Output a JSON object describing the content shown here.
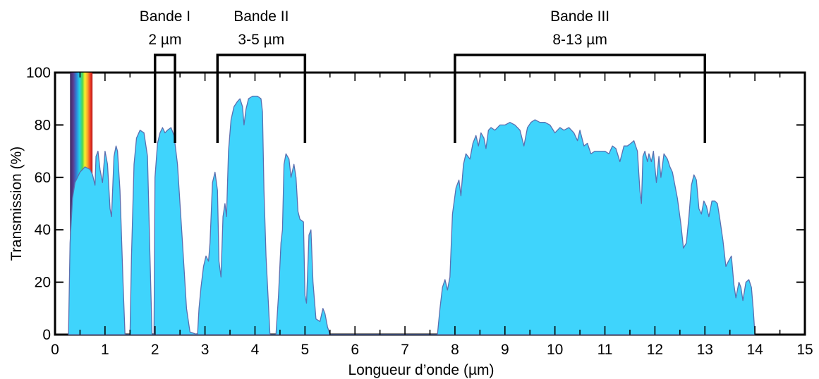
{
  "chart_data": {
    "type": "area",
    "title": "",
    "xlabel": "Longueur d’onde (µm)",
    "ylabel": "Transmission (%)",
    "xlim": [
      0,
      15
    ],
    "ylim": [
      0,
      100
    ],
    "x_ticks": [
      0,
      1,
      2,
      3,
      4,
      5,
      6,
      7,
      8,
      9,
      10,
      11,
      12,
      13,
      14,
      15
    ],
    "y_ticks": [
      0,
      20,
      40,
      60,
      80,
      100
    ],
    "grid": false,
    "fill_color": "#3fd4fc",
    "line_color": "#5a6fb0",
    "visible_spectrum": {
      "range_um": [
        0.3,
        0.75
      ]
    },
    "bands": [
      {
        "name": "Bande I",
        "range_label": "2 µm",
        "x_start": 2.0,
        "x_end": 2.4
      },
      {
        "name": "Bande II",
        "range_label": "3-5 µm",
        "x_start": 3.25,
        "x_end": 5.0
      },
      {
        "name": "Bande III",
        "range_label": "8-13 µm",
        "x_start": 8.0,
        "x_end": 13.0
      }
    ],
    "series": [
      {
        "points": [
          [
            0.27,
            0
          ],
          [
            0.3,
            35
          ],
          [
            0.35,
            52
          ],
          [
            0.4,
            58
          ],
          [
            0.5,
            62
          ],
          [
            0.6,
            64
          ],
          [
            0.7,
            63
          ],
          [
            0.75,
            61
          ],
          [
            0.8,
            57
          ],
          [
            0.82,
            68
          ],
          [
            0.86,
            70
          ],
          [
            0.9,
            63
          ],
          [
            0.95,
            58
          ],
          [
            1.0,
            70
          ],
          [
            1.05,
            65
          ],
          [
            1.1,
            48
          ],
          [
            1.13,
            45
          ],
          [
            1.18,
            68
          ],
          [
            1.22,
            72
          ],
          [
            1.25,
            70
          ],
          [
            1.3,
            55
          ],
          [
            1.36,
            20
          ],
          [
            1.4,
            0
          ],
          [
            1.5,
            0
          ],
          [
            1.53,
            30
          ],
          [
            1.58,
            65
          ],
          [
            1.63,
            75
          ],
          [
            1.7,
            78
          ],
          [
            1.78,
            77
          ],
          [
            1.85,
            68
          ],
          [
            1.9,
            30
          ],
          [
            1.94,
            0
          ],
          [
            1.98,
            0
          ],
          [
            2.0,
            60
          ],
          [
            2.05,
            73
          ],
          [
            2.1,
            77
          ],
          [
            2.15,
            79
          ],
          [
            2.2,
            77
          ],
          [
            2.25,
            78
          ],
          [
            2.32,
            79
          ],
          [
            2.38,
            76
          ],
          [
            2.45,
            65
          ],
          [
            2.55,
            35
          ],
          [
            2.63,
            10
          ],
          [
            2.7,
            1
          ],
          [
            2.85,
            0
          ],
          [
            2.88,
            10
          ],
          [
            2.92,
            18
          ],
          [
            2.97,
            26
          ],
          [
            3.02,
            30
          ],
          [
            3.07,
            28
          ],
          [
            3.1,
            35
          ],
          [
            3.15,
            58
          ],
          [
            3.2,
            62
          ],
          [
            3.25,
            55
          ],
          [
            3.28,
            28
          ],
          [
            3.32,
            22
          ],
          [
            3.36,
            45
          ],
          [
            3.4,
            50
          ],
          [
            3.43,
            45
          ],
          [
            3.47,
            70
          ],
          [
            3.52,
            82
          ],
          [
            3.58,
            87
          ],
          [
            3.65,
            89
          ],
          [
            3.7,
            90
          ],
          [
            3.75,
            87
          ],
          [
            3.78,
            80
          ],
          [
            3.82,
            86
          ],
          [
            3.87,
            90
          ],
          [
            3.95,
            91
          ],
          [
            4.05,
            91
          ],
          [
            4.12,
            90
          ],
          [
            4.15,
            85
          ],
          [
            4.18,
            55
          ],
          [
            4.22,
            30
          ],
          [
            4.3,
            0
          ],
          [
            4.42,
            0
          ],
          [
            4.47,
            15
          ],
          [
            4.52,
            35
          ],
          [
            4.55,
            40
          ],
          [
            4.58,
            65
          ],
          [
            4.62,
            69
          ],
          [
            4.68,
            67
          ],
          [
            4.72,
            60
          ],
          [
            4.78,
            65
          ],
          [
            4.82,
            60
          ],
          [
            4.86,
            47
          ],
          [
            4.9,
            44
          ],
          [
            4.97,
            43
          ],
          [
            5.0,
            15
          ],
          [
            5.03,
            12
          ],
          [
            5.08,
            38
          ],
          [
            5.12,
            40
          ],
          [
            5.16,
            20
          ],
          [
            5.22,
            6
          ],
          [
            5.3,
            5
          ],
          [
            5.36,
            10
          ],
          [
            5.4,
            8
          ],
          [
            5.45,
            3
          ],
          [
            5.5,
            0
          ],
          [
            7.65,
            0
          ],
          [
            7.7,
            10
          ],
          [
            7.75,
            18
          ],
          [
            7.8,
            21
          ],
          [
            7.85,
            17
          ],
          [
            7.9,
            22
          ],
          [
            7.95,
            46
          ],
          [
            8.02,
            56
          ],
          [
            8.08,
            59
          ],
          [
            8.12,
            53
          ],
          [
            8.17,
            65
          ],
          [
            8.22,
            69
          ],
          [
            8.3,
            67
          ],
          [
            8.36,
            73
          ],
          [
            8.42,
            76
          ],
          [
            8.47,
            72
          ],
          [
            8.52,
            77
          ],
          [
            8.58,
            75
          ],
          [
            8.62,
            71
          ],
          [
            8.67,
            78
          ],
          [
            8.72,
            79
          ],
          [
            8.8,
            78
          ],
          [
            8.9,
            80
          ],
          [
            9.0,
            80
          ],
          [
            9.1,
            81
          ],
          [
            9.2,
            80
          ],
          [
            9.3,
            78
          ],
          [
            9.38,
            72
          ],
          [
            9.45,
            79
          ],
          [
            9.52,
            81
          ],
          [
            9.6,
            82
          ],
          [
            9.7,
            81
          ],
          [
            9.8,
            81
          ],
          [
            9.9,
            80
          ],
          [
            10.0,
            77
          ],
          [
            10.1,
            79
          ],
          [
            10.18,
            78
          ],
          [
            10.28,
            79
          ],
          [
            10.38,
            77
          ],
          [
            10.45,
            74
          ],
          [
            10.5,
            78
          ],
          [
            10.58,
            72
          ],
          [
            10.65,
            73
          ],
          [
            10.72,
            69
          ],
          [
            10.8,
            70
          ],
          [
            10.9,
            70
          ],
          [
            11.0,
            70
          ],
          [
            11.08,
            69
          ],
          [
            11.15,
            72
          ],
          [
            11.22,
            71
          ],
          [
            11.3,
            66
          ],
          [
            11.38,
            72
          ],
          [
            11.45,
            72
          ],
          [
            11.52,
            73
          ],
          [
            11.58,
            74
          ],
          [
            11.65,
            70
          ],
          [
            11.7,
            55
          ],
          [
            11.73,
            50
          ],
          [
            11.76,
            68
          ],
          [
            11.8,
            70
          ],
          [
            11.85,
            66
          ],
          [
            11.88,
            69
          ],
          [
            11.93,
            66
          ],
          [
            11.97,
            70
          ],
          [
            12.03,
            58
          ],
          [
            12.08,
            68
          ],
          [
            12.12,
            60
          ],
          [
            12.18,
            69
          ],
          [
            12.25,
            67
          ],
          [
            12.3,
            64
          ],
          [
            12.35,
            62
          ],
          [
            12.45,
            52
          ],
          [
            12.52,
            42
          ],
          [
            12.57,
            33
          ],
          [
            12.63,
            35
          ],
          [
            12.68,
            45
          ],
          [
            12.73,
            57
          ],
          [
            12.78,
            61
          ],
          [
            12.83,
            59
          ],
          [
            12.88,
            48
          ],
          [
            12.93,
            46
          ],
          [
            12.98,
            51
          ],
          [
            13.03,
            49
          ],
          [
            13.08,
            45
          ],
          [
            13.14,
            51
          ],
          [
            13.2,
            51
          ],
          [
            13.25,
            50
          ],
          [
            13.3,
            44
          ],
          [
            13.36,
            36
          ],
          [
            13.42,
            26
          ],
          [
            13.47,
            28
          ],
          [
            13.53,
            30
          ],
          [
            13.58,
            19
          ],
          [
            13.62,
            14
          ],
          [
            13.68,
            20
          ],
          [
            13.72,
            18
          ],
          [
            13.76,
            13
          ],
          [
            13.82,
            20
          ],
          [
            13.88,
            21
          ],
          [
            13.93,
            18
          ],
          [
            13.97,
            9
          ],
          [
            14.0,
            0
          ]
        ]
      }
    ]
  }
}
